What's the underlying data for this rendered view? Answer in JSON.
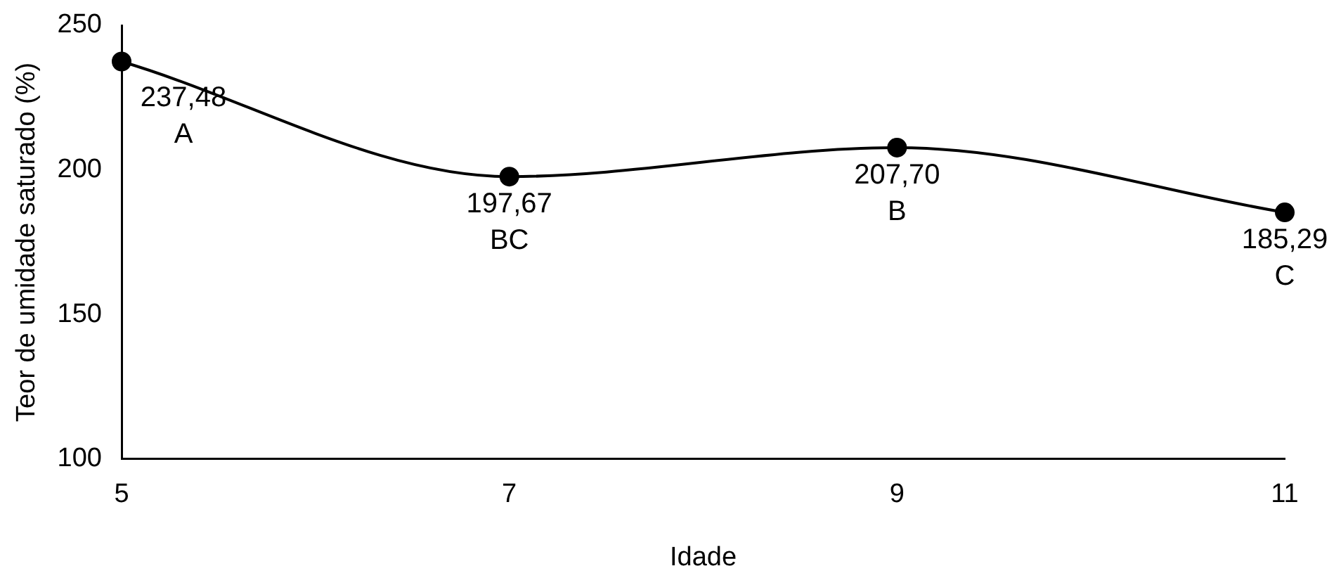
{
  "chart_data": {
    "type": "line",
    "xlabel": "Idade",
    "ylabel": "Teor de umidade saturado (%)",
    "x": [
      5,
      7,
      9,
      11
    ],
    "series": [
      {
        "color": "#000000",
        "values": [
          237.48,
          197.67,
          207.7,
          185.29
        ],
        "value_labels": [
          "237,48",
          "197,67",
          "207,70",
          "185,29"
        ]
      }
    ],
    "annotations": [
      {
        "text": "A",
        "x": 5,
        "y": 237.48
      },
      {
        "text": "BC",
        "x": 7,
        "y": 197.67
      },
      {
        "text": "B",
        "x": 9,
        "y": 207.7
      },
      {
        "text": "C",
        "x": 11,
        "y": 185.29
      }
    ],
    "xlim": [
      5,
      11
    ],
    "xticks": [
      5,
      7,
      9,
      11
    ],
    "ylim": [
      100,
      250
    ],
    "yticks": [
      100,
      150,
      200,
      250
    ],
    "grid": false,
    "legend": false,
    "marker": "circle",
    "line_style": "solid"
  }
}
